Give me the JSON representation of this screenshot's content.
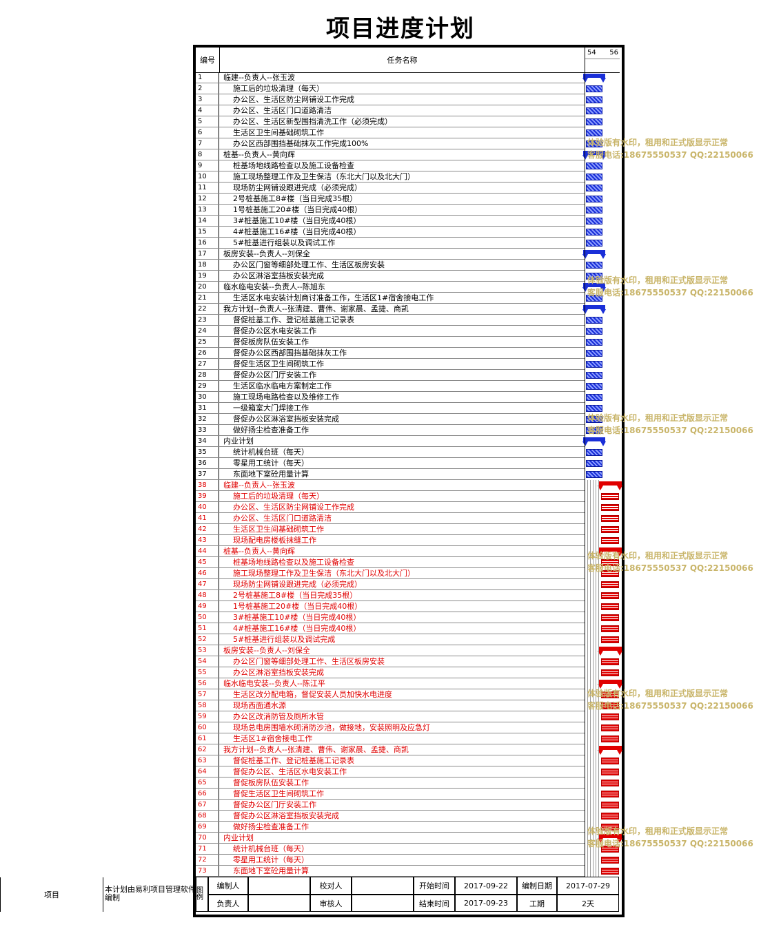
{
  "title": "项目进度计划",
  "header": {
    "num": "编号",
    "task": "任务名称",
    "day_a": "54",
    "day_b": "56"
  },
  "watermark": {
    "line1": "体验版有水印，租用和正式版显示正常",
    "line2": "客服电话:18675550537 QQ:22150066"
  },
  "tasks": [
    {
      "n": "1",
      "name": "临建--负责人--张玉波",
      "summary": true,
      "color": "blue"
    },
    {
      "n": "2",
      "name": "施工后的垃圾清理（每天）",
      "color": "blue"
    },
    {
      "n": "3",
      "name": "办公区、生活区防尘网铺设工作完成",
      "color": "blue"
    },
    {
      "n": "4",
      "name": "办公区、生活区门口道路清洁",
      "color": "blue"
    },
    {
      "n": "5",
      "name": "办公区、生活区新型围挡清洗工作（必须完成）",
      "color": "blue"
    },
    {
      "n": "6",
      "name": "生活区卫生间基础砌筑工作",
      "color": "blue"
    },
    {
      "n": "7",
      "name": "办公区西部围挡基础抹灰工作完成100%",
      "color": "blue"
    },
    {
      "n": "8",
      "name": "桩基--负责人--黄向辉",
      "summary": true,
      "color": "blue"
    },
    {
      "n": "9",
      "name": "桩基场地线路检查以及施工设备检查",
      "color": "blue"
    },
    {
      "n": "10",
      "name": "施工现场整理工作及卫生保洁（东北大门以及北大门）",
      "color": "blue"
    },
    {
      "n": "11",
      "name": "现场防尘网铺设跟进完成（必须完成）",
      "color": "blue"
    },
    {
      "n": "12",
      "name": "2号桩基施工8#楼（当日完成35根）",
      "color": "blue"
    },
    {
      "n": "13",
      "name": "1号桩基施工20#楼（当日完成40根）",
      "color": "blue"
    },
    {
      "n": "14",
      "name": "3#桩基施工10#楼（当日完成40根）",
      "color": "blue"
    },
    {
      "n": "15",
      "name": "4#桩基施工16#楼（当日完成40根）",
      "color": "blue"
    },
    {
      "n": "16",
      "name": "5#桩基进行组装以及调试工作",
      "color": "blue"
    },
    {
      "n": "17",
      "name": "板房安装--负责人--刘保全",
      "summary": true,
      "color": "blue"
    },
    {
      "n": "18",
      "name": "办公区门窗等细部处理工作、生活区板房安装",
      "color": "blue"
    },
    {
      "n": "19",
      "name": "办公区淋浴室挡板安装完成",
      "color": "blue"
    },
    {
      "n": "20",
      "name": "临水临电安装--负责人--陈旭东",
      "summary": true,
      "color": "blue"
    },
    {
      "n": "21",
      "name": "生活区水电安装计划商讨准备工作，生活区1#宿舍接电工作",
      "color": "blue"
    },
    {
      "n": "22",
      "name": "我方计划--负责人--张清建、曹伟、谢家晨、孟捷、商凯",
      "summary": true,
      "color": "blue"
    },
    {
      "n": "23",
      "name": "督促桩基工作、登记桩基施工记录表",
      "color": "blue"
    },
    {
      "n": "24",
      "name": "督促办公区水电安装工作",
      "color": "blue"
    },
    {
      "n": "25",
      "name": "督促板房队伍安装工作",
      "color": "blue"
    },
    {
      "n": "26",
      "name": "督促办公区西部围挡基础抹灰工作",
      "color": "blue"
    },
    {
      "n": "27",
      "name": "督促生活区卫生间砌筑工作",
      "color": "blue"
    },
    {
      "n": "28",
      "name": "督促办公区门厅安装工作",
      "color": "blue"
    },
    {
      "n": "29",
      "name": "生活区临水临电方案制定工作",
      "color": "blue"
    },
    {
      "n": "30",
      "name": "施工现场电路检查以及维修工作",
      "color": "blue"
    },
    {
      "n": "31",
      "name": "一级箱室大门焊接工作",
      "color": "blue"
    },
    {
      "n": "32",
      "name": "督促办公区淋浴室挡板安装完成",
      "color": "blue"
    },
    {
      "n": "33",
      "name": "做好扬尘检查准备工作",
      "color": "blue"
    },
    {
      "n": "34",
      "name": "内业计划",
      "summary": true,
      "color": "blue"
    },
    {
      "n": "35",
      "name": "统计机械台班（每天）",
      "color": "blue"
    },
    {
      "n": "36",
      "name": "零星用工统计（每天）",
      "color": "blue"
    },
    {
      "n": "37",
      "name": "东面地下室砼用量计算",
      "color": "blue"
    },
    {
      "n": "38",
      "name": "临建--负责人--张玉波",
      "summary": true,
      "color": "red"
    },
    {
      "n": "39",
      "name": "施工后的垃圾清理（每天）",
      "color": "red"
    },
    {
      "n": "40",
      "name": "办公区、生活区防尘网铺设工作完成",
      "color": "red"
    },
    {
      "n": "41",
      "name": "办公区、生活区门口道路清洁",
      "color": "red"
    },
    {
      "n": "42",
      "name": "生活区卫生间基础砌筑工作",
      "color": "red"
    },
    {
      "n": "43",
      "name": "现场配电房楼板抹缝工作",
      "color": "red"
    },
    {
      "n": "44",
      "name": "桩基--负责人--黄向辉",
      "summary": true,
      "color": "red"
    },
    {
      "n": "45",
      "name": "桩基场地线路检查以及施工设备检查",
      "color": "red"
    },
    {
      "n": "46",
      "name": "施工现场整理工作及卫生保洁（东北大门以及北大门）",
      "color": "red"
    },
    {
      "n": "47",
      "name": "现场防尘网铺设跟进完成（必须完成）",
      "color": "red"
    },
    {
      "n": "48",
      "name": "2号桩基施工8#楼（当日完成35根）",
      "color": "red"
    },
    {
      "n": "49",
      "name": "1号桩基施工20#楼（当日完成40根）",
      "color": "red"
    },
    {
      "n": "50",
      "name": "3#桩基施工10#楼（当日完成40根）",
      "color": "red"
    },
    {
      "n": "51",
      "name": "4#桩基施工16#楼（当日完成40根）",
      "color": "red"
    },
    {
      "n": "52",
      "name": "5#桩基进行组装以及调试完成",
      "color": "red"
    },
    {
      "n": "53",
      "name": "板房安装--负责人--刘保全",
      "summary": true,
      "color": "red"
    },
    {
      "n": "54",
      "name": "办公区门窗等细部处理工作、生活区板房安装",
      "color": "red"
    },
    {
      "n": "55",
      "name": "办公区淋浴室挡板安装完成",
      "color": "red"
    },
    {
      "n": "56",
      "name": "临水临电安装--负责人--陈江平",
      "summary": true,
      "color": "red"
    },
    {
      "n": "57",
      "name": "生活区改分配电箱，督促安装人员加快水电进度",
      "color": "red"
    },
    {
      "n": "58",
      "name": "现场西面通水源",
      "color": "red"
    },
    {
      "n": "59",
      "name": "办公区改消防管及厕所水管",
      "color": "red"
    },
    {
      "n": "60",
      "name": "现场总电房围墙水砌消防沙池，做接地，安装照明及应急灯",
      "color": "red"
    },
    {
      "n": "61",
      "name": "生活区1#宿舍接电工作",
      "color": "red"
    },
    {
      "n": "62",
      "name": "我方计划--负责人--张清建、曹伟、谢家晨、孟捷、商凯",
      "summary": true,
      "color": "red"
    },
    {
      "n": "63",
      "name": "督促桩基工作、登记桩基施工记录表",
      "color": "red"
    },
    {
      "n": "64",
      "name": "督促办公区、生活区水电安装工作",
      "color": "red"
    },
    {
      "n": "65",
      "name": "督促板房队伍安装工作",
      "color": "red"
    },
    {
      "n": "66",
      "name": "督促生活区卫生间砌筑工作",
      "color": "red"
    },
    {
      "n": "67",
      "name": "督促办公区门厅安装工作",
      "color": "red"
    },
    {
      "n": "68",
      "name": "督促办公区淋浴室挡板安装完成",
      "color": "red"
    },
    {
      "n": "69",
      "name": "做好扬尘检查准备工作",
      "color": "red"
    },
    {
      "n": "70",
      "name": "内业计划",
      "summary": true,
      "color": "red"
    },
    {
      "n": "71",
      "name": "统计机械台班（每天）",
      "color": "red"
    },
    {
      "n": "72",
      "name": "零星用工统计（每天）",
      "color": "red"
    },
    {
      "n": "73",
      "name": "东面地下室砼用量计算",
      "color": "red"
    }
  ],
  "footer": {
    "project_label": "项目",
    "note": "本计划由易利项目管理软件编制",
    "legend": "图例",
    "compiler_label": "编制人",
    "compiler": "",
    "checker_label": "校对人",
    "checker": "",
    "start_label": "开始时间",
    "start_value": "2017-09-22",
    "date_label": "编制日期",
    "date_value": "2017-07-29",
    "owner_label": "负责人",
    "owner": "",
    "reviewer_label": "审核人",
    "reviewer": "",
    "end_label": "结束时间",
    "end_value": "2017-09-23",
    "period_label": "工期",
    "period_value": "2天"
  }
}
